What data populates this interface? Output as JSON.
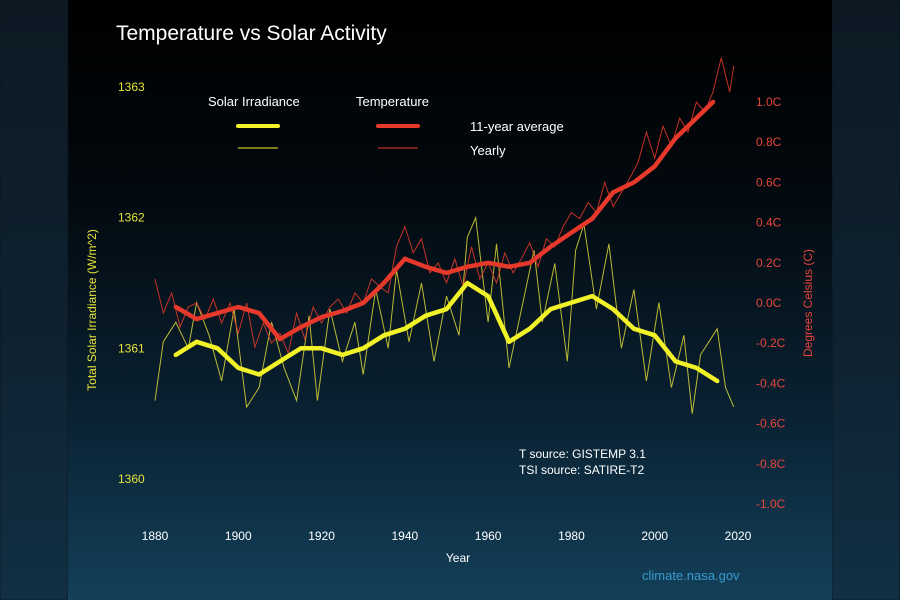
{
  "chart_data": {
    "type": "line",
    "title": "Temperature vs Solar Activity",
    "xlabel": "Year",
    "ylabel_left": "Total Solar Irradiance (W/m^2)",
    "ylabel_right": "Degrees Celsius (C)",
    "xlim": [
      1880,
      2020
    ],
    "ylim_left": [
      1360,
      1363
    ],
    "ylim_right": [
      -1.0,
      1.0
    ],
    "x_ticks": [
      "1880",
      "1900",
      "1920",
      "1940",
      "1960",
      "1980",
      "2000",
      "2020"
    ],
    "y_left_ticks": [
      "1360",
      "1361",
      "1362",
      "1363"
    ],
    "y_right_ticks": [
      "1.0C",
      "0.8C",
      "0.6C",
      "0.4C",
      "0.2C",
      "0.0C",
      "-0.2C",
      "-0.4C",
      "-0.6C",
      "-0.8C",
      "-1.0C"
    ],
    "legend": {
      "solar_label": "Solar Irradiance",
      "temp_label": "Temperature",
      "avg_label": "11-year average",
      "yearly_label": "Yearly"
    },
    "colors": {
      "solar": "#f2f229",
      "temp": "#e6392c"
    },
    "annotations": [
      "T source: GISTEMP 3.1",
      "TSI source: SATIRE-T2"
    ],
    "credit": "climate.nasa.gov",
    "series": [
      {
        "name": "Solar Irradiance",
        "kind": "11-year average",
        "axis": "left",
        "x": [
          1885,
          1890,
          1895,
          1900,
          1905,
          1910,
          1915,
          1920,
          1925,
          1930,
          1935,
          1940,
          1945,
          1950,
          1955,
          1960,
          1965,
          1970,
          1975,
          1980,
          1985,
          1990,
          1995,
          2000,
          2005,
          2010,
          2015
        ],
        "y": [
          1360.95,
          1361.05,
          1361.0,
          1360.85,
          1360.8,
          1360.9,
          1361.0,
          1361.0,
          1360.95,
          1361.0,
          1361.1,
          1361.15,
          1361.25,
          1361.3,
          1361.5,
          1361.4,
          1361.05,
          1361.15,
          1361.3,
          1361.35,
          1361.4,
          1361.3,
          1361.15,
          1361.1,
          1360.9,
          1360.85,
          1360.75
        ]
      },
      {
        "name": "Solar Irradiance",
        "kind": "Yearly",
        "axis": "left",
        "x": [
          1880,
          1882,
          1885,
          1888,
          1890,
          1893,
          1896,
          1899,
          1902,
          1905,
          1908,
          1911,
          1914,
          1917,
          1919,
          1922,
          1925,
          1928,
          1930,
          1933,
          1936,
          1938,
          1941,
          1944,
          1947,
          1950,
          1953,
          1955,
          1957,
          1960,
          1962,
          1965,
          1968,
          1971,
          1973,
          1976,
          1979,
          1981,
          1983,
          1986,
          1989,
          1992,
          1995,
          1998,
          2001,
          2004,
          2007,
          2009,
          2011,
          2013,
          2015,
          2017,
          2019
        ],
        "y": [
          1360.6,
          1361.05,
          1361.2,
          1361.0,
          1361.35,
          1361.1,
          1360.75,
          1361.3,
          1360.55,
          1360.7,
          1361.2,
          1360.85,
          1360.6,
          1361.25,
          1360.6,
          1361.3,
          1360.9,
          1361.2,
          1360.8,
          1361.45,
          1361.0,
          1361.6,
          1361.05,
          1361.5,
          1360.9,
          1361.4,
          1361.1,
          1361.85,
          1362.0,
          1361.2,
          1361.8,
          1360.85,
          1361.3,
          1361.75,
          1361.2,
          1361.65,
          1360.9,
          1361.75,
          1361.95,
          1361.3,
          1361.8,
          1361.0,
          1361.45,
          1360.75,
          1361.35,
          1360.7,
          1361.1,
          1360.5,
          1360.95,
          1361.05,
          1361.15,
          1360.7,
          1360.55
        ]
      },
      {
        "name": "Temperature",
        "kind": "11-year average",
        "axis": "right",
        "x": [
          1885,
          1890,
          1895,
          1900,
          1905,
          1910,
          1915,
          1920,
          1925,
          1930,
          1935,
          1940,
          1945,
          1950,
          1955,
          1960,
          1965,
          1970,
          1975,
          1980,
          1985,
          1990,
          1995,
          2000,
          2005,
          2010,
          2014
        ],
        "y": [
          -0.02,
          -0.08,
          -0.05,
          -0.02,
          -0.05,
          -0.18,
          -0.12,
          -0.07,
          -0.04,
          0.0,
          0.1,
          0.22,
          0.18,
          0.15,
          0.18,
          0.2,
          0.18,
          0.2,
          0.28,
          0.35,
          0.42,
          0.55,
          0.6,
          0.68,
          0.82,
          0.92,
          1.0
        ]
      },
      {
        "name": "Temperature",
        "kind": "Yearly",
        "axis": "right",
        "x": [
          1880,
          1882,
          1884,
          1886,
          1888,
          1890,
          1892,
          1894,
          1896,
          1898,
          1900,
          1902,
          1904,
          1906,
          1908,
          1910,
          1912,
          1914,
          1916,
          1918,
          1920,
          1922,
          1924,
          1926,
          1928,
          1930,
          1932,
          1934,
          1936,
          1938,
          1940,
          1942,
          1944,
          1946,
          1948,
          1950,
          1952,
          1954,
          1956,
          1958,
          1960,
          1962,
          1964,
          1966,
          1968,
          1970,
          1972,
          1974,
          1976,
          1978,
          1980,
          1982,
          1984,
          1986,
          1988,
          1990,
          1992,
          1994,
          1996,
          1998,
          2000,
          2002,
          2004,
          2006,
          2008,
          2010,
          2012,
          2014,
          2016,
          2018,
          2019
        ],
        "y": [
          0.12,
          -0.05,
          0.05,
          -0.12,
          -0.02,
          0.0,
          -0.08,
          0.02,
          -0.1,
          0.0,
          -0.15,
          0.0,
          -0.22,
          -0.1,
          -0.2,
          -0.15,
          -0.25,
          -0.05,
          -0.18,
          -0.02,
          -0.1,
          -0.02,
          0.02,
          -0.05,
          0.05,
          0.0,
          0.12,
          0.08,
          0.05,
          0.28,
          0.38,
          0.25,
          0.32,
          0.15,
          0.2,
          0.1,
          0.22,
          0.08,
          0.28,
          0.12,
          0.2,
          0.1,
          0.25,
          0.15,
          0.22,
          0.3,
          0.18,
          0.32,
          0.28,
          0.38,
          0.45,
          0.42,
          0.5,
          0.45,
          0.6,
          0.48,
          0.55,
          0.62,
          0.7,
          0.85,
          0.72,
          0.88,
          0.78,
          0.92,
          0.85,
          1.0,
          0.95,
          1.05,
          1.22,
          1.05,
          1.18
        ]
      }
    ]
  }
}
